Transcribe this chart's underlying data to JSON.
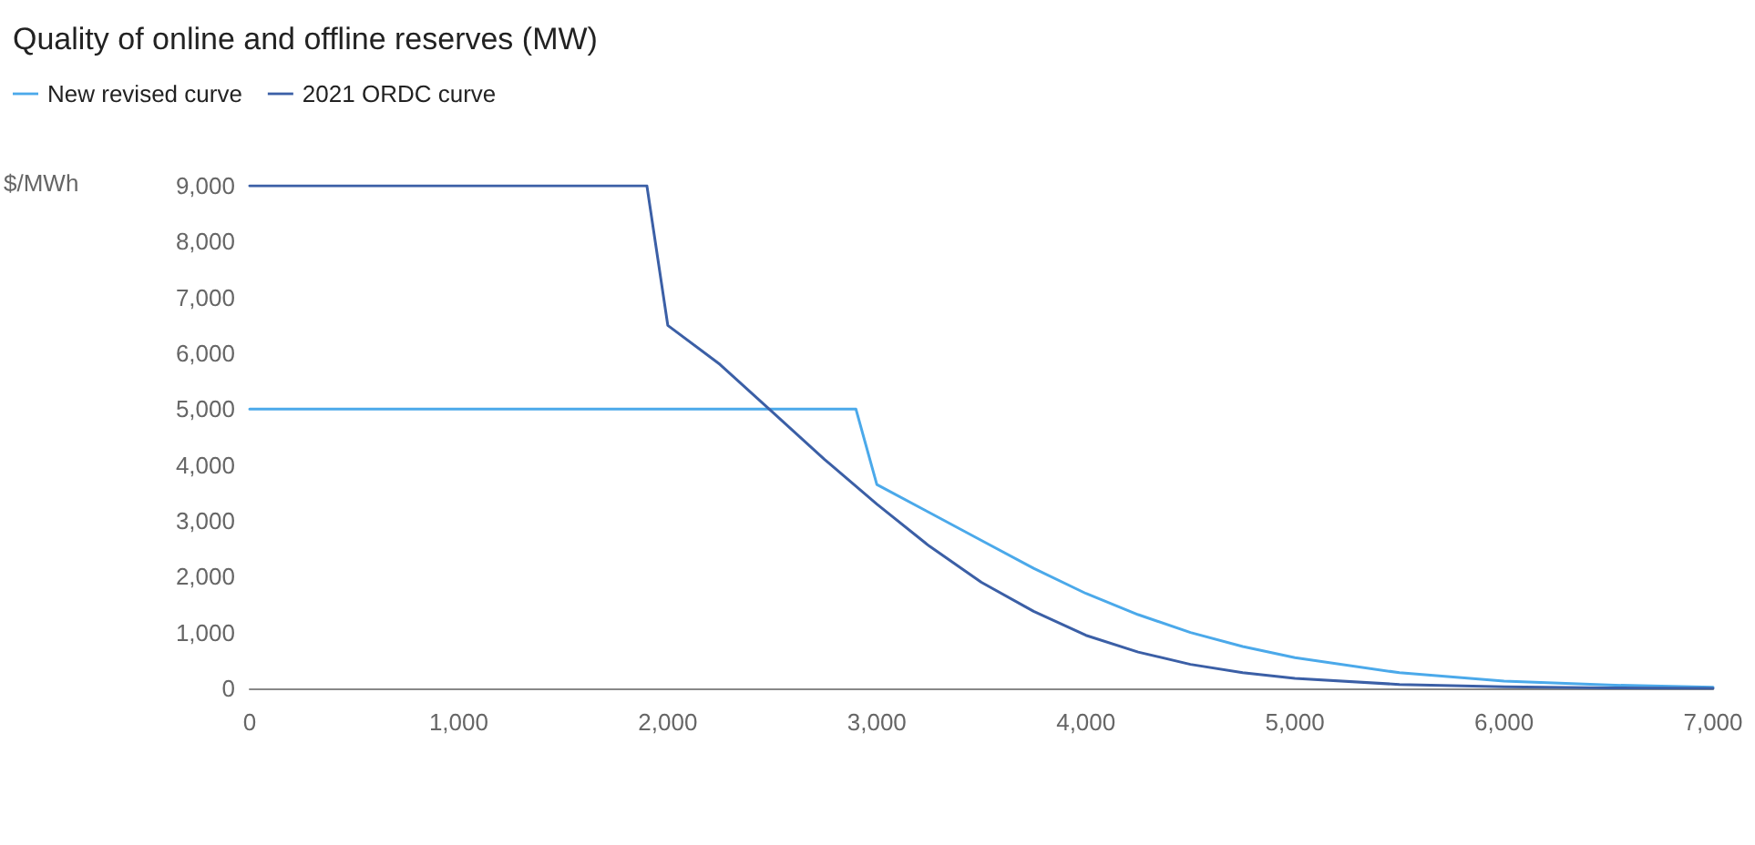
{
  "chart_data": {
    "type": "line",
    "title": "Quality of online and offline reserves (MW)",
    "ylabel": "$/MWh",
    "series": [
      {
        "name": "New revised curve",
        "color": "#4ba9ea",
        "x": [
          0,
          1000,
          2000,
          2900,
          3000,
          3250,
          3500,
          3750,
          4000,
          4250,
          4500,
          4750,
          5000,
          5500,
          6000,
          6500,
          7000
        ],
        "values": [
          5000,
          5000,
          5000,
          5000,
          3650,
          3150,
          2650,
          2150,
          1700,
          1320,
          1000,
          750,
          550,
          280,
          130,
          60,
          20
        ]
      },
      {
        "name": "2021 ORDC curve",
        "color": "#3b5fa6",
        "x": [
          0,
          1000,
          1900,
          2000,
          2250,
          2500,
          2750,
          3000,
          3250,
          3500,
          3750,
          4000,
          4250,
          4500,
          4750,
          5000,
          5500,
          6000,
          6500,
          7000
        ],
        "values": [
          9000,
          9000,
          9000,
          6500,
          5800,
          4950,
          4100,
          3300,
          2550,
          1900,
          1380,
          950,
          650,
          430,
          280,
          180,
          70,
          30,
          10,
          0
        ]
      }
    ],
    "xlim": [
      0,
      7000
    ],
    "xticks": [
      0,
      {
        "value": 1000,
        "label": "1,000"
      },
      {
        "value": 2000,
        "label": "2,000"
      },
      {
        "value": 3000,
        "label": "3,000"
      },
      {
        "value": 4000,
        "label": "4,000"
      },
      {
        "value": 5000,
        "label": "5,000"
      },
      {
        "value": 6000,
        "label": "6,000"
      },
      {
        "value": 7000,
        "label": "7,000"
      }
    ],
    "ylim": [
      0,
      9000
    ],
    "yticks": [
      0,
      {
        "value": 1000,
        "label": "1,000"
      },
      {
        "value": 2000,
        "label": "2,000"
      },
      {
        "value": 3000,
        "label": "3,000"
      },
      {
        "value": 4000,
        "label": "4,000"
      },
      {
        "value": 5000,
        "label": "5,000"
      },
      {
        "value": 6000,
        "label": "6,000"
      },
      {
        "value": 7000,
        "label": "7,000"
      },
      {
        "value": 8000,
        "label": "8,000"
      },
      {
        "value": 9000,
        "label": "9,000"
      }
    ],
    "grid": false,
    "legend": "top left",
    "marker": "none",
    "line_style": "solid"
  }
}
